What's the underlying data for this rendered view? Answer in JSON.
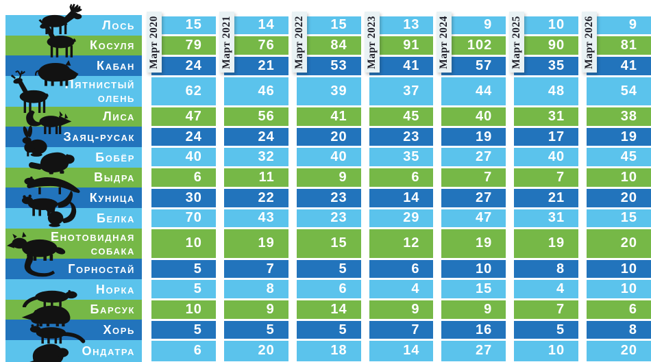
{
  "chart_data": {
    "type": "table",
    "title": "",
    "columns": [
      "Март 2020",
      "Март 2021",
      "Март 2022",
      "Март 2023",
      "Март 2024",
      "Март 2025",
      "Март 2026"
    ],
    "rows": [
      {
        "name": "Лось",
        "icon": "moose-icon",
        "values": [
          15,
          14,
          15,
          13,
          9,
          10,
          9
        ]
      },
      {
        "name": "Косуля",
        "icon": "roe-deer-icon",
        "values": [
          79,
          76,
          84,
          91,
          102,
          90,
          81
        ]
      },
      {
        "name": "Кабан",
        "icon": "boar-icon",
        "values": [
          24,
          21,
          53,
          41,
          57,
          35,
          41
        ]
      },
      {
        "name": "Пятнистый олень",
        "icon": "spotted-deer-icon",
        "values": [
          62,
          46,
          39,
          37,
          44,
          48,
          54
        ]
      },
      {
        "name": "Лиса",
        "icon": "fox-icon",
        "values": [
          47,
          56,
          41,
          45,
          40,
          31,
          38
        ]
      },
      {
        "name": "Заяц-русак",
        "icon": "hare-icon",
        "values": [
          24,
          24,
          20,
          23,
          19,
          17,
          19
        ]
      },
      {
        "name": "Бобёр",
        "icon": "beaver-icon",
        "values": [
          40,
          32,
          40,
          35,
          27,
          40,
          45
        ]
      },
      {
        "name": "Выдра",
        "icon": "otter-icon",
        "values": [
          6,
          11,
          9,
          6,
          7,
          7,
          10
        ]
      },
      {
        "name": "Куница",
        "icon": "marten-icon",
        "values": [
          30,
          22,
          23,
          14,
          27,
          21,
          20
        ]
      },
      {
        "name": "Белка",
        "icon": "squirrel-icon",
        "values": [
          70,
          43,
          23,
          29,
          47,
          31,
          15
        ]
      },
      {
        "name": "Енотовидная собака",
        "icon": "raccoon-dog-icon",
        "values": [
          10,
          19,
          15,
          12,
          19,
          19,
          20
        ]
      },
      {
        "name": "Горностай",
        "icon": "stoat-icon",
        "values": [
          5,
          7,
          5,
          6,
          10,
          8,
          10
        ]
      },
      {
        "name": "Норка",
        "icon": "mink-icon",
        "values": [
          5,
          8,
          6,
          4,
          15,
          4,
          10
        ]
      },
      {
        "name": "Барсук",
        "icon": "badger-icon",
        "values": [
          10,
          9,
          14,
          9,
          9,
          7,
          6
        ]
      },
      {
        "name": "Хорь",
        "icon": "polecat-icon",
        "values": [
          5,
          5,
          5,
          7,
          16,
          5,
          8
        ]
      },
      {
        "name": "Ондатра",
        "icon": "muskrat-icon",
        "values": [
          6,
          20,
          18,
          14,
          27,
          10,
          20
        ]
      }
    ],
    "layout_hints": {
      "row_color_cycle": [
        "light_blue",
        "green",
        "dark_blue"
      ],
      "column_headers_vertical": true
    }
  },
  "colors": {
    "row_light_blue": "#5BC3EC",
    "row_green": "#76B847",
    "row_dark_blue": "#2274BC",
    "header_strip_bg": "#E9F2F4",
    "header_strip_text": "#1E1E28",
    "cell_text": "#FFFFFF",
    "silhouette": "#121212",
    "background": "#FFFFFF"
  }
}
